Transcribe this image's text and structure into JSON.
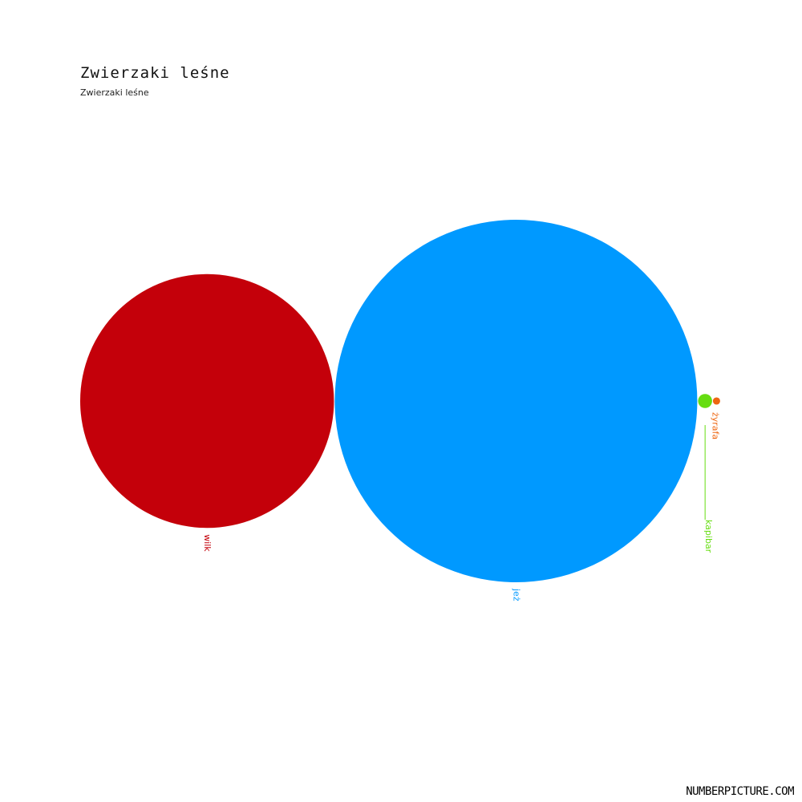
{
  "header": {
    "title": "Zwierzaki leśne",
    "subtitle": "Zwierzaki leśne"
  },
  "brand": "NUMBERPICTURE.COM",
  "chart_data": {
    "type": "bubble",
    "title": "Zwierzaki leśne",
    "subtitle": "Zwierzaki leśne",
    "values_note": "",
    "series": [
      {
        "name": "wilk",
        "value": 49,
        "color": "#c4000a"
      },
      {
        "name": "jeż",
        "value": 100,
        "color": "#0099ff"
      },
      {
        "name": "kapibar",
        "value": 0.15,
        "color": "#66dd11"
      },
      {
        "name": "żyrafa",
        "value": 0.04,
        "color": "#ee6611"
      }
    ]
  }
}
